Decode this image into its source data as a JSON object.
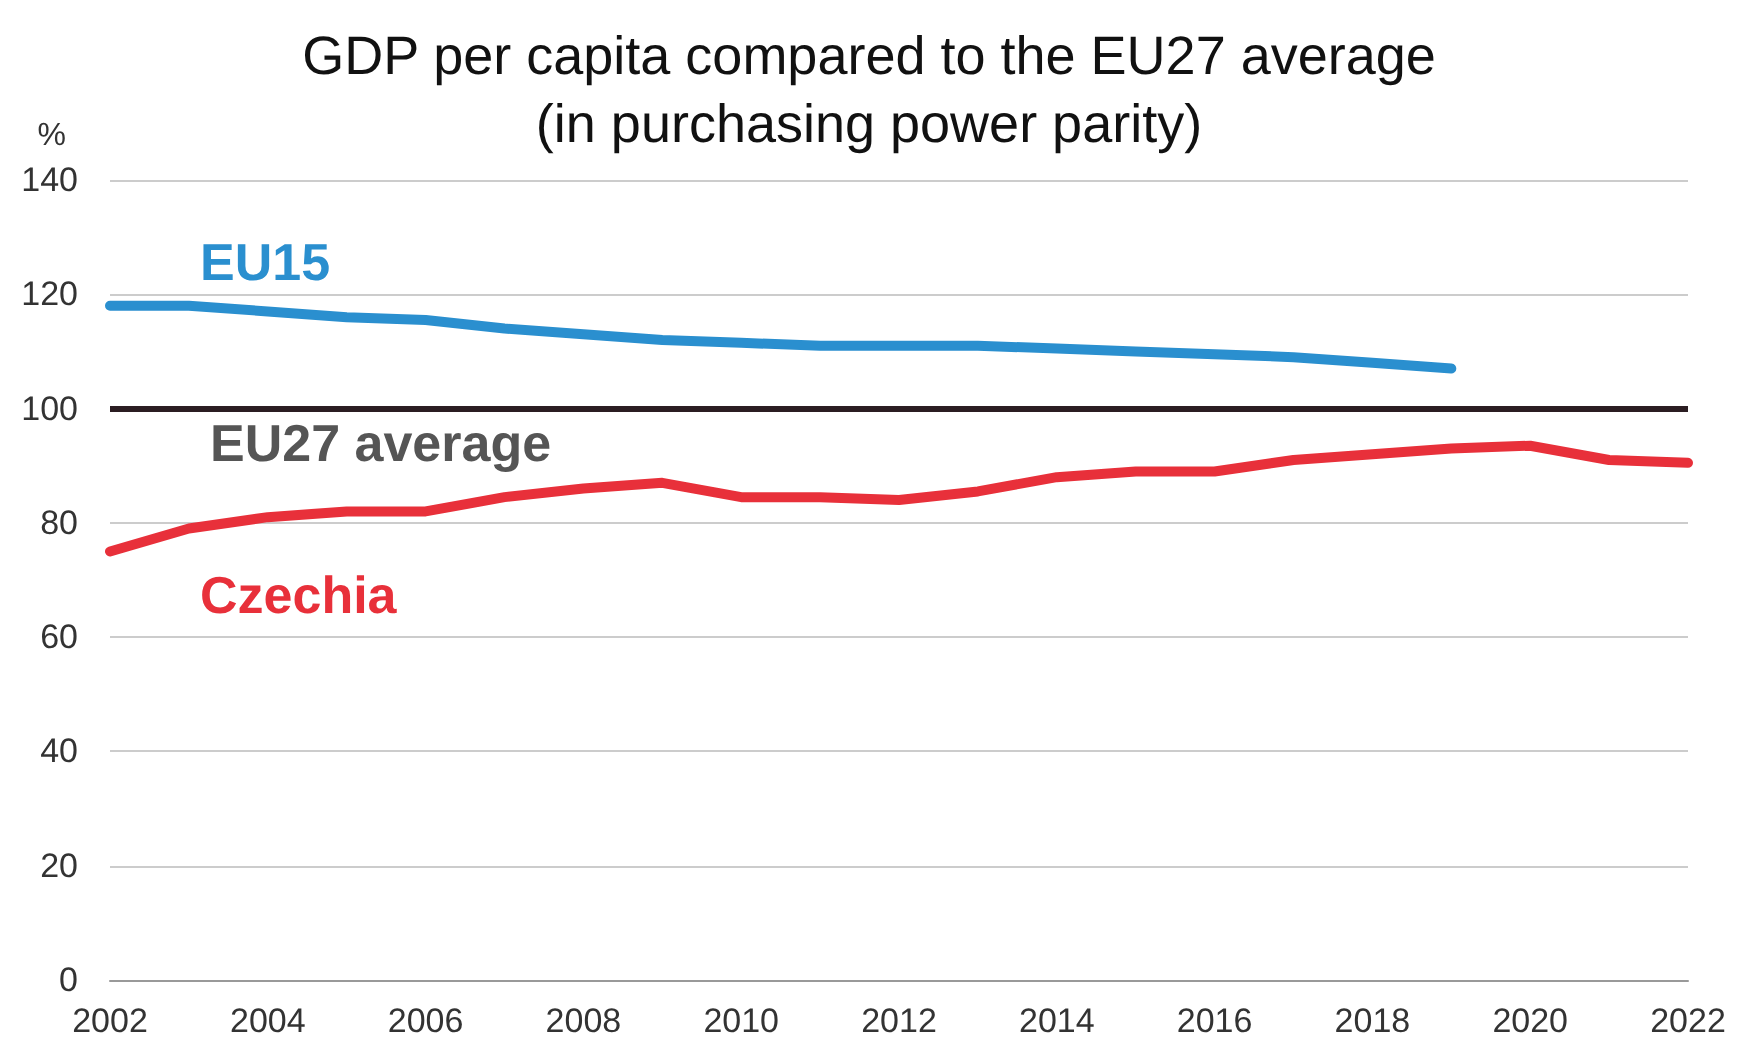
{
  "chart_data": {
    "type": "line",
    "title": "GDP per capita compared to the EU27 average\n(in purchasing power parity)",
    "ylabel": "%",
    "x": [
      2002,
      2003,
      2004,
      2005,
      2006,
      2007,
      2008,
      2009,
      2010,
      2011,
      2012,
      2013,
      2014,
      2015,
      2016,
      2017,
      2018,
      2019,
      2020,
      2021,
      2022
    ],
    "series": [
      {
        "name": "EU15",
        "color": "#2a8fcf",
        "values": [
          118,
          118,
          117,
          116,
          115.5,
          114,
          113,
          112,
          111.5,
          111,
          111,
          111,
          110.5,
          110,
          109.5,
          109,
          108,
          107,
          null,
          null,
          null
        ]
      },
      {
        "name": "Czechia",
        "color": "#e8303a",
        "values": [
          75,
          79,
          81,
          82,
          82,
          84.5,
          86,
          87,
          84.5,
          84.5,
          84,
          85.5,
          88,
          89,
          89,
          91,
          92,
          93,
          93.5,
          91,
          90.5
        ]
      }
    ],
    "xlim": [
      2002,
      2022
    ],
    "xticks": [
      2002,
      2004,
      2006,
      2008,
      2010,
      2012,
      2014,
      2016,
      2018,
      2020,
      2022
    ],
    "ylim": [
      0,
      140
    ],
    "yticks": [
      0,
      20,
      40,
      60,
      80,
      100,
      120,
      140
    ],
    "ref_lines": [
      {
        "axis": "y",
        "value": 100,
        "label": "EU27 average",
        "color": "#2b1d22"
      }
    ],
    "grid": "y",
    "legend": false,
    "marker": "none",
    "line_style": "solid"
  }
}
